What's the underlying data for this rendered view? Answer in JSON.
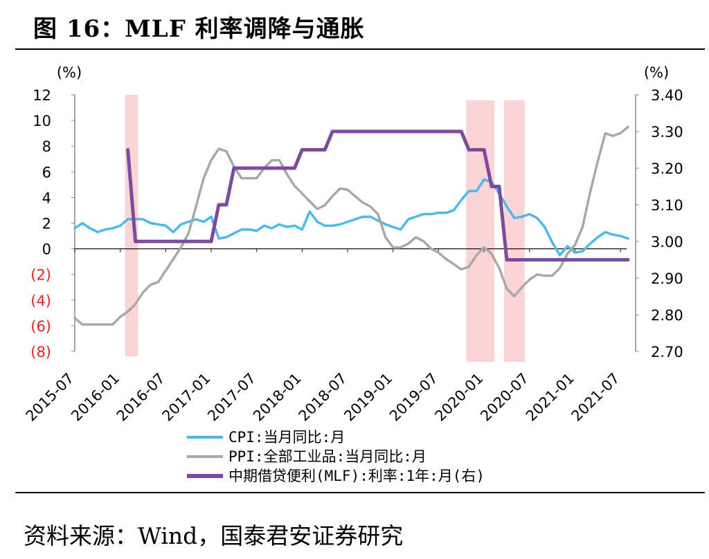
{
  "figure": {
    "title": "图 16：MLF 利率调降与通胀",
    "source": "资料来源：Wind，国泰君安证券研究"
  },
  "chart_data": {
    "type": "line",
    "left_axis": {
      "unit": "(%)",
      "range": [
        -8,
        12
      ],
      "ticks": [
        12,
        10,
        8,
        6,
        4,
        2,
        0,
        -2,
        -4,
        -6,
        -8
      ],
      "tick_labels": [
        "12",
        "10",
        "8",
        "6",
        "4",
        "2",
        "0",
        "(2)",
        "(4)",
        "(6)",
        "(8)"
      ],
      "negative_color": "#e8231e"
    },
    "right_axis": {
      "unit": "(%)",
      "range": [
        2.7,
        3.4
      ],
      "ticks": [
        3.4,
        3.3,
        3.2,
        3.1,
        3.0,
        2.9,
        2.8,
        2.7
      ],
      "tick_labels": [
        "3.40",
        "3.30",
        "3.20",
        "3.10",
        "3.00",
        "2.90",
        "2.80",
        "2.70"
      ]
    },
    "x_axis": {
      "start": "2015-07",
      "end": "2021-09",
      "tick_labels": [
        "2015-07",
        "2016-01",
        "2016-07",
        "2017-01",
        "2017-07",
        "2018-01",
        "2018-07",
        "2019-01",
        "2019-07",
        "2020-01",
        "2020-07",
        "2021-01",
        "2021-07"
      ]
    },
    "shaded_periods": [
      {
        "start": "2016-02",
        "end": "2016-03"
      },
      {
        "start": "2019-11",
        "end": "2020-02"
      },
      {
        "start": "2020-04",
        "end": "2020-06"
      }
    ],
    "series": [
      {
        "name": "CPI:当月同比:月",
        "axis": "left",
        "color": "#4fb8e8",
        "points": [
          [
            "2015-07",
            1.6
          ],
          [
            "2015-08",
            2.0
          ],
          [
            "2015-09",
            1.6
          ],
          [
            "2015-10",
            1.3
          ],
          [
            "2015-11",
            1.5
          ],
          [
            "2015-12",
            1.6
          ],
          [
            "2016-01",
            1.8
          ],
          [
            "2016-02",
            2.3
          ],
          [
            "2016-03",
            2.3
          ],
          [
            "2016-04",
            2.3
          ],
          [
            "2016-05",
            2.0
          ],
          [
            "2016-06",
            1.9
          ],
          [
            "2016-07",
            1.8
          ],
          [
            "2016-08",
            1.3
          ],
          [
            "2016-09",
            1.9
          ],
          [
            "2016-10",
            2.1
          ],
          [
            "2016-11",
            2.3
          ],
          [
            "2016-12",
            2.1
          ],
          [
            "2017-01",
            2.5
          ],
          [
            "2017-02",
            0.8
          ],
          [
            "2017-03",
            0.9
          ],
          [
            "2017-04",
            1.2
          ],
          [
            "2017-05",
            1.5
          ],
          [
            "2017-06",
            1.5
          ],
          [
            "2017-07",
            1.4
          ],
          [
            "2017-08",
            1.8
          ],
          [
            "2017-09",
            1.6
          ],
          [
            "2017-10",
            1.9
          ],
          [
            "2017-11",
            1.7
          ],
          [
            "2017-12",
            1.8
          ],
          [
            "2018-01",
            1.5
          ],
          [
            "2018-02",
            2.9
          ],
          [
            "2018-03",
            2.1
          ],
          [
            "2018-04",
            1.8
          ],
          [
            "2018-05",
            1.8
          ],
          [
            "2018-06",
            1.9
          ],
          [
            "2018-07",
            2.1
          ],
          [
            "2018-08",
            2.3
          ],
          [
            "2018-09",
            2.5
          ],
          [
            "2018-10",
            2.5
          ],
          [
            "2018-11",
            2.2
          ],
          [
            "2018-12",
            1.9
          ],
          [
            "2019-01",
            1.7
          ],
          [
            "2019-02",
            1.5
          ],
          [
            "2019-03",
            2.3
          ],
          [
            "2019-04",
            2.5
          ],
          [
            "2019-05",
            2.7
          ],
          [
            "2019-06",
            2.7
          ],
          [
            "2019-07",
            2.8
          ],
          [
            "2019-08",
            2.8
          ],
          [
            "2019-09",
            3.0
          ],
          [
            "2019-10",
            3.8
          ],
          [
            "2019-11",
            4.5
          ],
          [
            "2019-12",
            4.5
          ],
          [
            "2020-01",
            5.4
          ],
          [
            "2020-02",
            5.2
          ],
          [
            "2020-03",
            4.3
          ],
          [
            "2020-04",
            3.3
          ],
          [
            "2020-05",
            2.4
          ],
          [
            "2020-06",
            2.5
          ],
          [
            "2020-07",
            2.7
          ],
          [
            "2020-08",
            2.4
          ],
          [
            "2020-09",
            1.7
          ],
          [
            "2020-10",
            0.5
          ],
          [
            "2020-11",
            -0.5
          ],
          [
            "2020-12",
            0.2
          ],
          [
            "2021-01",
            -0.3
          ],
          [
            "2021-02",
            -0.2
          ],
          [
            "2021-03",
            0.4
          ],
          [
            "2021-04",
            0.9
          ],
          [
            "2021-05",
            1.3
          ],
          [
            "2021-06",
            1.1
          ],
          [
            "2021-07",
            1.0
          ],
          [
            "2021-08",
            0.8
          ]
        ]
      },
      {
        "name": "PPI:全部工业品:当月同比:月",
        "axis": "left",
        "color": "#a8a8a8",
        "points": [
          [
            "2015-07",
            -5.4
          ],
          [
            "2015-08",
            -5.9
          ],
          [
            "2015-09",
            -5.9
          ],
          [
            "2015-10",
            -5.9
          ],
          [
            "2015-11",
            -5.9
          ],
          [
            "2015-12",
            -5.9
          ],
          [
            "2016-01",
            -5.3
          ],
          [
            "2016-02",
            -4.9
          ],
          [
            "2016-03",
            -4.3
          ],
          [
            "2016-04",
            -3.4
          ],
          [
            "2016-05",
            -2.8
          ],
          [
            "2016-06",
            -2.6
          ],
          [
            "2016-07",
            -1.7
          ],
          [
            "2016-08",
            -0.8
          ],
          [
            "2016-09",
            0.1
          ],
          [
            "2016-10",
            1.2
          ],
          [
            "2016-11",
            3.3
          ],
          [
            "2016-12",
            5.5
          ],
          [
            "2017-01",
            6.9
          ],
          [
            "2017-02",
            7.8
          ],
          [
            "2017-03",
            7.6
          ],
          [
            "2017-04",
            6.4
          ],
          [
            "2017-05",
            5.5
          ],
          [
            "2017-06",
            5.5
          ],
          [
            "2017-07",
            5.5
          ],
          [
            "2017-08",
            6.3
          ],
          [
            "2017-09",
            6.9
          ],
          [
            "2017-10",
            6.9
          ],
          [
            "2017-11",
            5.8
          ],
          [
            "2017-12",
            4.9
          ],
          [
            "2018-01",
            4.3
          ],
          [
            "2018-02",
            3.7
          ],
          [
            "2018-03",
            3.1
          ],
          [
            "2018-04",
            3.4
          ],
          [
            "2018-05",
            4.1
          ],
          [
            "2018-06",
            4.7
          ],
          [
            "2018-07",
            4.6
          ],
          [
            "2018-08",
            4.1
          ],
          [
            "2018-09",
            3.6
          ],
          [
            "2018-10",
            3.3
          ],
          [
            "2018-11",
            2.7
          ],
          [
            "2018-12",
            0.9
          ],
          [
            "2019-01",
            0.1
          ],
          [
            "2019-02",
            0.1
          ],
          [
            "2019-03",
            0.4
          ],
          [
            "2019-04",
            0.9
          ],
          [
            "2019-05",
            0.6
          ],
          [
            "2019-06",
            0.0
          ],
          [
            "2019-07",
            -0.3
          ],
          [
            "2019-08",
            -0.8
          ],
          [
            "2019-09",
            -1.2
          ],
          [
            "2019-10",
            -1.6
          ],
          [
            "2019-11",
            -1.4
          ],
          [
            "2019-12",
            -0.5
          ],
          [
            "2020-01",
            0.1
          ],
          [
            "2020-02",
            -0.4
          ],
          [
            "2020-03",
            -1.5
          ],
          [
            "2020-04",
            -3.1
          ],
          [
            "2020-05",
            -3.7
          ],
          [
            "2020-06",
            -3.0
          ],
          [
            "2020-07",
            -2.4
          ],
          [
            "2020-08",
            -2.0
          ],
          [
            "2020-09",
            -2.1
          ],
          [
            "2020-10",
            -2.1
          ],
          [
            "2020-11",
            -1.5
          ],
          [
            "2020-12",
            -0.4
          ],
          [
            "2021-01",
            0.3
          ],
          [
            "2021-02",
            1.7
          ],
          [
            "2021-03",
            4.4
          ],
          [
            "2021-04",
            6.8
          ],
          [
            "2021-05",
            9.0
          ],
          [
            "2021-06",
            8.8
          ],
          [
            "2021-07",
            9.0
          ],
          [
            "2021-08",
            9.5
          ]
        ]
      },
      {
        "name": "中期借贷便利(MLF):利率:1年:月(右)",
        "axis": "right",
        "color": "#7b4b9e",
        "points": [
          [
            "2016-02",
            3.25
          ],
          [
            "2016-03",
            3.0
          ],
          [
            "2017-01",
            3.0
          ],
          [
            "2017-02",
            3.1
          ],
          [
            "2017-03",
            3.1
          ],
          [
            "2017-04",
            3.2
          ],
          [
            "2017-12",
            3.2
          ],
          [
            "2018-01",
            3.25
          ],
          [
            "2018-04",
            3.25
          ],
          [
            "2018-05",
            3.3
          ],
          [
            "2019-10",
            3.3
          ],
          [
            "2019-11",
            3.25
          ],
          [
            "2019-12",
            3.25
          ],
          [
            "2020-01",
            3.25
          ],
          [
            "2020-02",
            3.15
          ],
          [
            "2020-03",
            3.15
          ],
          [
            "2020-04",
            2.95
          ],
          [
            "2021-08",
            2.95
          ]
        ]
      }
    ],
    "legend": {
      "placement": "bottom"
    }
  }
}
